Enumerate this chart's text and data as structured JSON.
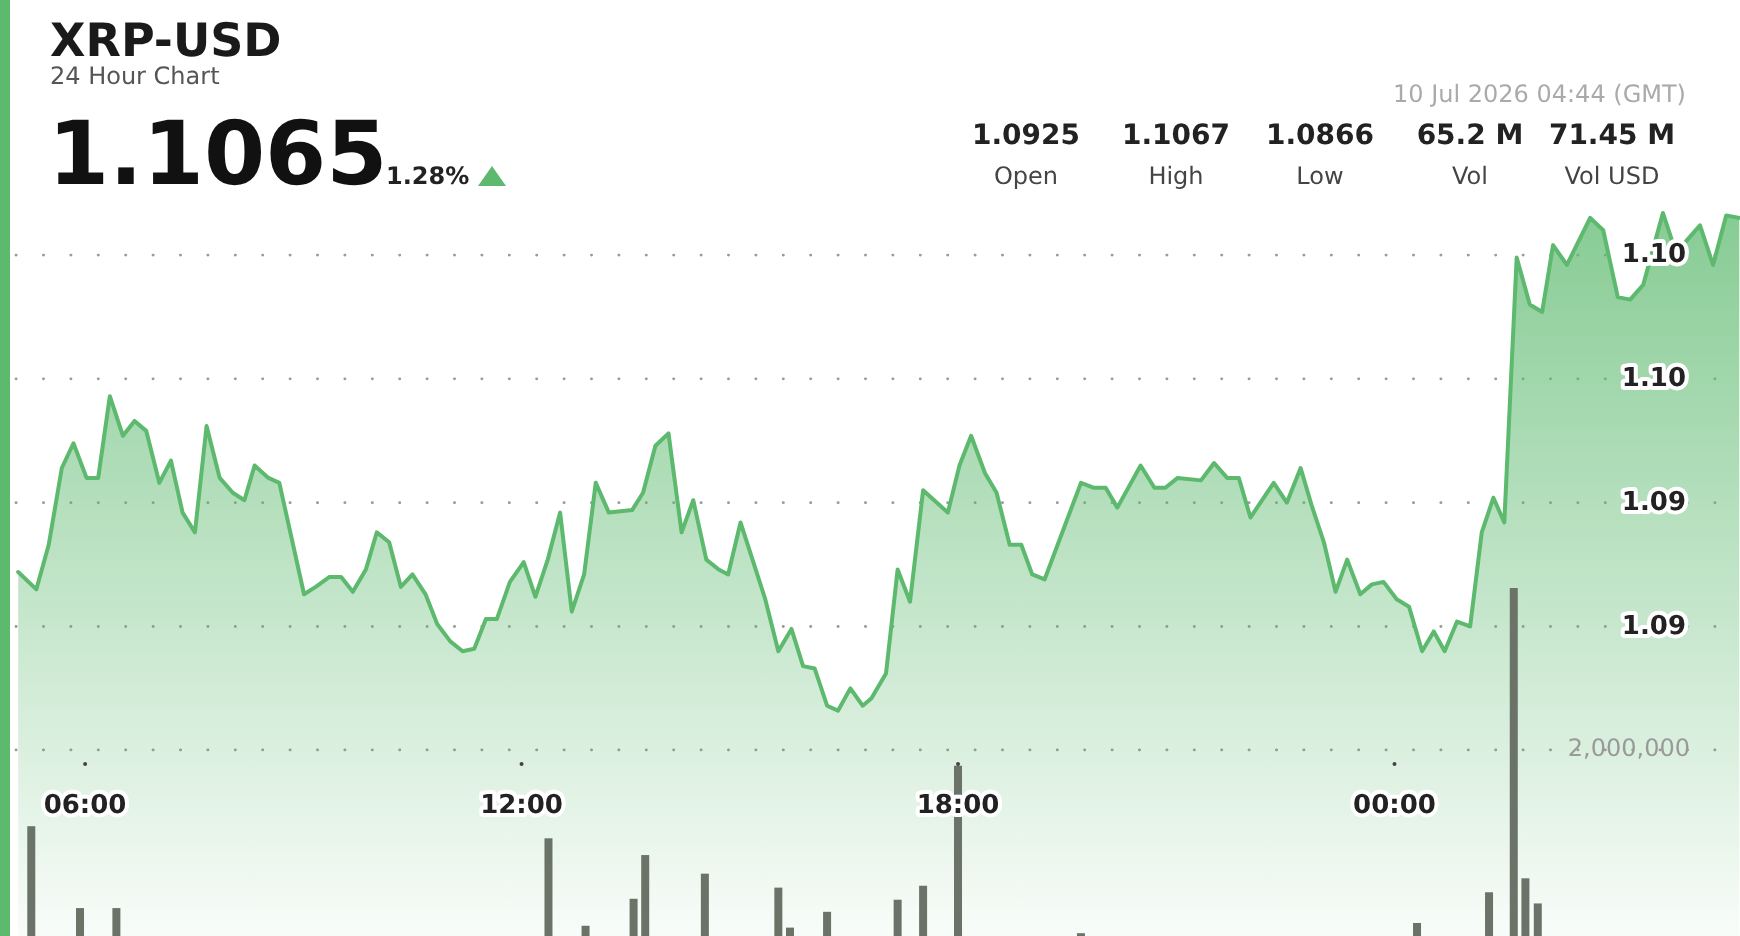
{
  "chart_data": {
    "type": "area",
    "title": "XRP-USD",
    "subtitle": "24 Hour Chart",
    "annotations": [
      "1.1065",
      "1.28%",
      "10 Jul 2026 04:44 (GMT)",
      "1.0925",
      "Open",
      "1.1067",
      "High",
      "1.0866",
      "Low",
      "65.2 M",
      "Vol",
      "71.45 M",
      "Vol USD"
    ],
    "xlim": [
      5.05,
      28.75
    ],
    "xticks": [
      {
        "value": 6,
        "label": "06:00"
      },
      {
        "value": 12,
        "label": "12:00"
      },
      {
        "value": 18,
        "label": "18:00"
      },
      {
        "value": 24,
        "label": "00:00"
      }
    ],
    "ylim": [
      1.0775,
      1.1153
    ],
    "yticks": [
      {
        "value": 1.09,
        "label": "1.09"
      },
      {
        "value": 1.095,
        "label": "1.09"
      },
      {
        "value": 1.1,
        "label": "1.10"
      },
      {
        "value": 1.105,
        "label": "1.10"
      }
    ],
    "y2lim": [
      0,
      10060000
    ],
    "y2ticks": [
      {
        "value": 2000000,
        "label": "2,000,000"
      }
    ],
    "grid": "y",
    "series": [
      {
        "color": "#5cb96e",
        "x": [
          5.08,
          5.33,
          5.5,
          5.68,
          5.84,
          6.02,
          6.18,
          6.34,
          6.52,
          6.68,
          6.84,
          7.02,
          7.18,
          7.34,
          7.51,
          7.67,
          7.85,
          8.03,
          8.19,
          8.33,
          8.52,
          8.67,
          9.01,
          9.17,
          9.36,
          9.52,
          9.68,
          9.86,
          10.01,
          10.18,
          10.34,
          10.5,
          10.68,
          10.84,
          11.02,
          11.19,
          11.35,
          11.51,
          11.66,
          11.84,
          12.03,
          12.19,
          12.36,
          12.53,
          12.69,
          12.86,
          13.02,
          13.2,
          13.52,
          13.67,
          13.84,
          14.02,
          14.2,
          14.36,
          14.54,
          14.71,
          14.84,
          15.01,
          15.35,
          15.53,
          15.71,
          15.87,
          16.03,
          16.2,
          16.35,
          16.52,
          16.69,
          16.81,
          17.01,
          17.17,
          17.34,
          17.52,
          17.86,
          18.02,
          18.18,
          18.37,
          18.53,
          18.71,
          18.87,
          19.02,
          19.19,
          19.69,
          19.87,
          20.03,
          20.19,
          20.51,
          20.7,
          20.85,
          21.02,
          21.34,
          21.52,
          21.7,
          21.86,
          22.02,
          22.34,
          22.52,
          22.71,
          22.86,
          23.03,
          23.19,
          23.35,
          23.53,
          23.69,
          23.85,
          24.03,
          24.2,
          24.38,
          24.54,
          24.69,
          24.86,
          25.04,
          25.2,
          25.36,
          25.51,
          25.68,
          25.86,
          26.03,
          26.18,
          26.37,
          26.69,
          26.87,
          27.07,
          27.24,
          27.42,
          27.69,
          27.87,
          28.2,
          28.38,
          28.56,
          28.74
        ],
        "values": [
          1.0922,
          1.0915,
          1.0933,
          1.0964,
          1.0974,
          1.096,
          1.096,
          1.0993,
          1.0977,
          1.0983,
          1.0979,
          1.0958,
          1.0967,
          1.0946,
          1.0938,
          1.0981,
          1.096,
          1.0954,
          1.0951,
          1.0965,
          1.096,
          1.0958,
          1.0913,
          1.0916,
          1.092,
          1.092,
          1.0914,
          1.0923,
          1.0938,
          1.0934,
          1.0916,
          1.0921,
          1.0913,
          1.0901,
          1.0894,
          1.089,
          1.0891,
          1.0903,
          1.0903,
          1.0918,
          1.0926,
          1.0912,
          1.0927,
          1.0946,
          1.0906,
          1.0921,
          1.0958,
          1.0946,
          1.0947,
          1.0954,
          1.0973,
          1.0978,
          1.0938,
          1.0951,
          1.0927,
          1.0923,
          1.0921,
          1.0942,
          1.0911,
          1.089,
          1.0899,
          1.0884,
          1.0883,
          1.0868,
          1.0866,
          1.0875,
          1.0868,
          1.0871,
          1.0881,
          1.0923,
          1.091,
          1.0955,
          1.0946,
          1.0965,
          1.0977,
          1.0962,
          1.0954,
          1.0933,
          1.0933,
          1.0921,
          1.0919,
          1.0958,
          1.0956,
          1.0956,
          1.0948,
          1.0965,
          1.0956,
          1.0956,
          1.096,
          1.0959,
          1.0966,
          1.096,
          1.096,
          1.0944,
          1.0958,
          1.095,
          1.0964,
          1.0949,
          1.0934,
          1.0914,
          1.0927,
          1.0913,
          1.0917,
          1.0918,
          1.0911,
          1.0908,
          1.089,
          1.0898,
          1.089,
          1.0902,
          1.09,
          1.0938,
          1.0952,
          1.0942,
          1.1049,
          1.103,
          1.1027,
          1.1054,
          1.1046,
          1.1065,
          1.106,
          1.1033,
          1.1032,
          1.1038,
          1.1067,
          1.1051,
          1.1062,
          1.1046,
          1.1066,
          1.1065
        ]
      },
      {
        "type": "bar",
        "axis": "y2",
        "color": "#6b7368",
        "x": [
          5.26,
          5.93,
          6.43,
          12.37,
          12.88,
          13.54,
          13.7,
          14.52,
          15.53,
          15.69,
          16.2,
          17.17,
          17.52,
          18.0,
          19.69,
          24.31,
          25.3,
          25.64,
          25.8,
          25.97
        ],
        "values": [
          1180000,
          300000,
          300000,
          1050000,
          110000,
          400000,
          870000,
          670000,
          520000,
          90000,
          260000,
          390000,
          540000,
          1830000,
          30000,
          140000,
          470000,
          3740000,
          620000,
          350000
        ]
      }
    ]
  }
}
